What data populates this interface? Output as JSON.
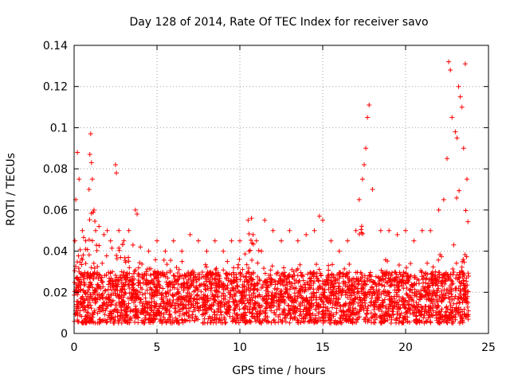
{
  "chart_data": {
    "type": "scatter",
    "title": "Day 128 of 2014, Rate Of TEC Index for receiver savo",
    "xlabel": "GPS time / hours",
    "ylabel": "ROTI / TECUs",
    "xlim": [
      0,
      25
    ],
    "ylim": [
      0,
      0.14
    ],
    "x_ticks": [
      0,
      5,
      10,
      15,
      20,
      25
    ],
    "x_tick_labels": [
      "0",
      "5",
      "10",
      "15",
      "20",
      "25"
    ],
    "y_ticks": [
      0,
      0.02,
      0.04,
      0.06,
      0.08,
      0.1,
      0.12,
      0.14
    ],
    "y_tick_labels": [
      "0",
      "0.02",
      "0.04",
      "0.06",
      "0.08",
      "0.1",
      "0.12",
      "0.14"
    ],
    "grid": true,
    "marker": "plus",
    "color": "#ff0000",
    "data_range_x": [
      0,
      23.8
    ],
    "baseline_range": [
      0.005,
      0.03
    ],
    "series": [
      {
        "name": "ROTI",
        "x": [
          0.05,
          0.1,
          0.2,
          0.3,
          0.5,
          0.7,
          0.9,
          0.95,
          1.0,
          1.05,
          1.1,
          1.2,
          1.3,
          1.5,
          1.8,
          2.0,
          2.2,
          2.5,
          2.55,
          2.7,
          3.0,
          3.3,
          3.7,
          3.8,
          4.0,
          4.5,
          5.0,
          5.5,
          6.0,
          6.5,
          7.0,
          7.5,
          8.0,
          8.5,
          9.0,
          9.5,
          10.0,
          10.5,
          10.7,
          10.8,
          11.0,
          11.3,
          11.5,
          12.0,
          12.5,
          13.0,
          13.5,
          14.0,
          14.5,
          14.8,
          15.0,
          15.5,
          16.0,
          16.5,
          17.0,
          17.2,
          17.4,
          17.5,
          17.6,
          17.7,
          17.8,
          18.0,
          18.5,
          19.0,
          19.5,
          20.0,
          20.5,
          21.0,
          21.5,
          22.0,
          22.3,
          22.5,
          22.6,
          22.7,
          22.8,
          23.0,
          23.1,
          23.2,
          23.3,
          23.4,
          23.5,
          23.6,
          23.7
        ],
        "y": [
          0.045,
          0.065,
          0.088,
          0.075,
          0.05,
          0.045,
          0.07,
          0.087,
          0.097,
          0.083,
          0.075,
          0.06,
          0.05,
          0.052,
          0.048,
          0.05,
          0.045,
          0.082,
          0.078,
          0.05,
          0.045,
          0.05,
          0.06,
          0.058,
          0.042,
          0.04,
          0.045,
          0.04,
          0.045,
          0.04,
          0.048,
          0.045,
          0.04,
          0.045,
          0.04,
          0.045,
          0.045,
          0.055,
          0.056,
          0.048,
          0.045,
          0.04,
          0.055,
          0.05,
          0.045,
          0.05,
          0.045,
          0.048,
          0.05,
          0.057,
          0.055,
          0.045,
          0.04,
          0.045,
          0.05,
          0.065,
          0.075,
          0.082,
          0.09,
          0.105,
          0.111,
          0.07,
          0.05,
          0.05,
          0.048,
          0.05,
          0.045,
          0.05,
          0.05,
          0.06,
          0.065,
          0.085,
          0.132,
          0.128,
          0.105,
          0.098,
          0.095,
          0.12,
          0.115,
          0.11,
          0.09,
          0.131,
          0.075
        ]
      }
    ]
  }
}
